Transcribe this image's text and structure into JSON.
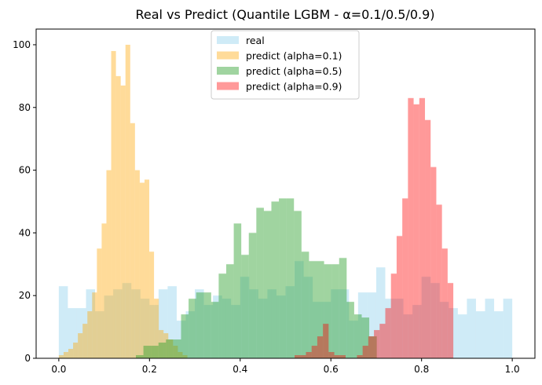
{
  "chart_data": {
    "type": "histogram",
    "title": "Real vs Predict (Quantile LGBM - α=0.1/0.5/0.9)",
    "xlabel": "",
    "ylabel": "",
    "xlim": [
      -0.05,
      1.05
    ],
    "ylim": [
      0,
      105
    ],
    "xticks": [
      0.0,
      0.2,
      0.4,
      0.6,
      0.8,
      1.0
    ],
    "xtick_labels": [
      "0.0",
      "0.2",
      "0.4",
      "0.6",
      "0.8",
      "1.0"
    ],
    "yticks": [
      0,
      20,
      40,
      60,
      80,
      100
    ],
    "ytick_labels": [
      "0",
      "20",
      "40",
      "60",
      "80",
      "100"
    ],
    "grid": false,
    "legend_position": "top-center",
    "series": [
      {
        "name": "real",
        "color": "#87ceeb",
        "opacity": 0.4,
        "bins": [
          0.0,
          0.02,
          0.04,
          0.06,
          0.08,
          0.1,
          0.12,
          0.14,
          0.16,
          0.18,
          0.2,
          0.22,
          0.24,
          0.26,
          0.28,
          0.3,
          0.32,
          0.34,
          0.36,
          0.38,
          0.4,
          0.42,
          0.44,
          0.46,
          0.48,
          0.5,
          0.52,
          0.54,
          0.56,
          0.58,
          0.6,
          0.62,
          0.64,
          0.66,
          0.68,
          0.7,
          0.72,
          0.74,
          0.76,
          0.78,
          0.8,
          0.82,
          0.84,
          0.86,
          0.88,
          0.9,
          0.92,
          0.94,
          0.96,
          0.98,
          1.0
        ],
        "counts": [
          23,
          16,
          16,
          22,
          15,
          20,
          22,
          24,
          22,
          19,
          17,
          22,
          23,
          12,
          15,
          22,
          17,
          20,
          19,
          17,
          26,
          22,
          19,
          22,
          20,
          23,
          31,
          26,
          18,
          18,
          22,
          22,
          12,
          21,
          21,
          29,
          19,
          19,
          14,
          17,
          26,
          24,
          18,
          16,
          14,
          19,
          15,
          19,
          15,
          19
        ]
      },
      {
        "name": "predict (alpha=0.1)",
        "color": "#ffa500",
        "opacity": 0.4,
        "bins": [
          0.0,
          0.0105,
          0.021,
          0.0315,
          0.042,
          0.0525,
          0.063,
          0.0735,
          0.084,
          0.0945,
          0.105,
          0.1155,
          0.126,
          0.1365,
          0.147,
          0.1575,
          0.168,
          0.1785,
          0.189,
          0.1995,
          0.21,
          0.2205,
          0.231,
          0.2415,
          0.252,
          0.2625,
          0.273,
          0.2835
        ],
        "counts": [
          1,
          2,
          3,
          5,
          8,
          11,
          15,
          21,
          35,
          43,
          60,
          98,
          90,
          87,
          100,
          75,
          60,
          56,
          57,
          34,
          19,
          9,
          8,
          6,
          4,
          2,
          1
        ]
      },
      {
        "name": "predict (alpha=0.5)",
        "color": "#2ca02c",
        "opacity": 0.45,
        "bins": [
          0.17,
          0.1866,
          0.2032,
          0.2198,
          0.2364,
          0.253,
          0.2696,
          0.2862,
          0.3028,
          0.3194,
          0.336,
          0.3526,
          0.3692,
          0.3858,
          0.4024,
          0.419,
          0.4356,
          0.4522,
          0.4688,
          0.4854,
          0.502,
          0.5186,
          0.5352,
          0.5518,
          0.5684,
          0.585,
          0.6016,
          0.6182,
          0.6348,
          0.6514,
          0.668,
          0.6846,
          0.7012
        ],
        "counts": [
          1,
          4,
          4,
          5,
          6,
          6,
          14,
          19,
          21,
          21,
          18,
          27,
          30,
          43,
          33,
          40,
          48,
          47,
          50,
          51,
          51,
          47,
          34,
          31,
          31,
          30,
          30,
          32,
          18,
          14,
          13,
          7
        ]
      },
      {
        "name": "predict (alpha=0.9)",
        "color": "#ff0000",
        "opacity": 0.4,
        "bins": [
          0.52,
          0.5325,
          0.545,
          0.5575,
          0.57,
          0.5825,
          0.595,
          0.6075,
          0.62,
          0.6325,
          0.645,
          0.6575,
          0.67,
          0.6825,
          0.695,
          0.7075,
          0.72,
          0.7325,
          0.745,
          0.7575,
          0.77,
          0.7825,
          0.795,
          0.8075,
          0.82,
          0.8325,
          0.845,
          0.8575,
          0.87
        ],
        "counts": [
          1,
          1,
          2,
          4,
          7,
          11,
          2,
          1,
          1,
          0,
          0,
          1,
          4,
          7,
          9,
          11,
          16,
          27,
          39,
          51,
          83,
          81,
          83,
          76,
          61,
          49,
          35,
          24
        ]
      }
    ]
  }
}
